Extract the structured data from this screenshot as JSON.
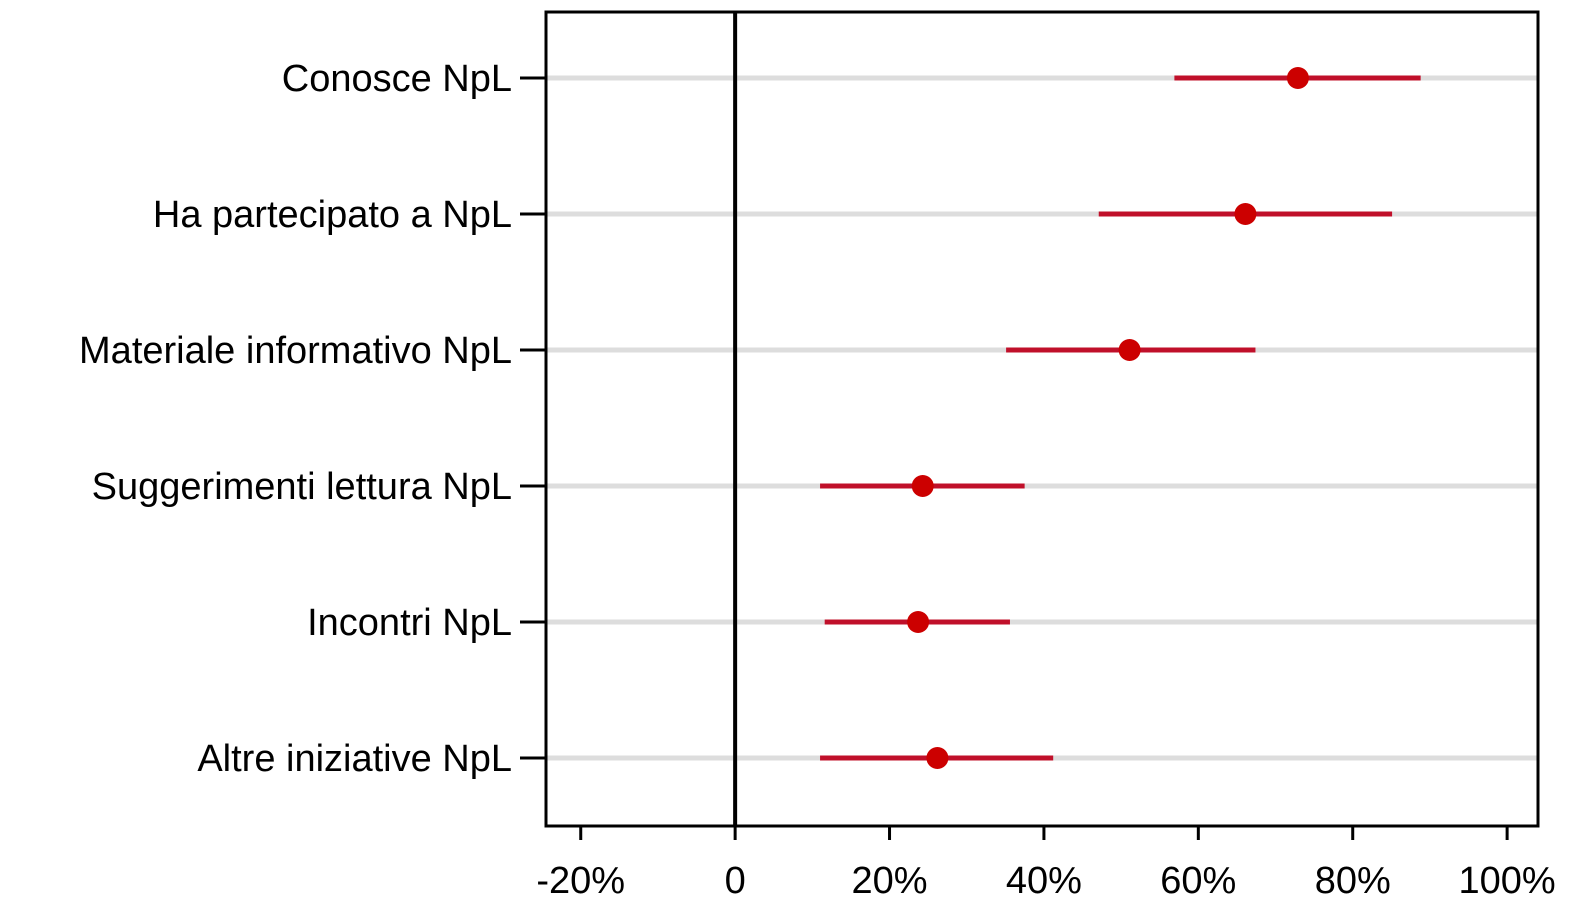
{
  "chart_data": {
    "type": "dot-ci",
    "title": "",
    "xlabel": "",
    "ylabel": "",
    "categories": [
      "Conosce NpL",
      "Ha partecipato a NpL",
      "Materiale informativo NpL",
      "Suggerimenti lettura NpL",
      "Incontri NpL",
      "Altre iniziative NpL"
    ],
    "series": [
      {
        "estimate": [
          72.9,
          66.1,
          51.1,
          24.3,
          23.7,
          26.2
        ],
        "lower": [
          56.9,
          47.1,
          35.1,
          11.0,
          11.6,
          11.0
        ],
        "upper": [
          88.8,
          85.1,
          67.4,
          37.5,
          35.6,
          41.2
        ]
      }
    ],
    "xlim": [
      -24.5,
      104.0
    ],
    "x_ticks": [
      -20,
      0,
      20,
      40,
      60,
      80,
      100
    ],
    "x_tick_labels": [
      "-20%",
      "0",
      "20%",
      "40%",
      "60%",
      "80%",
      "100%"
    ],
    "reference_line": 0,
    "grid": "horizontal",
    "colors": {
      "point": "#cc0000",
      "interval": "#c0102a",
      "grid": "#dddddd",
      "axis": "#000000"
    }
  }
}
